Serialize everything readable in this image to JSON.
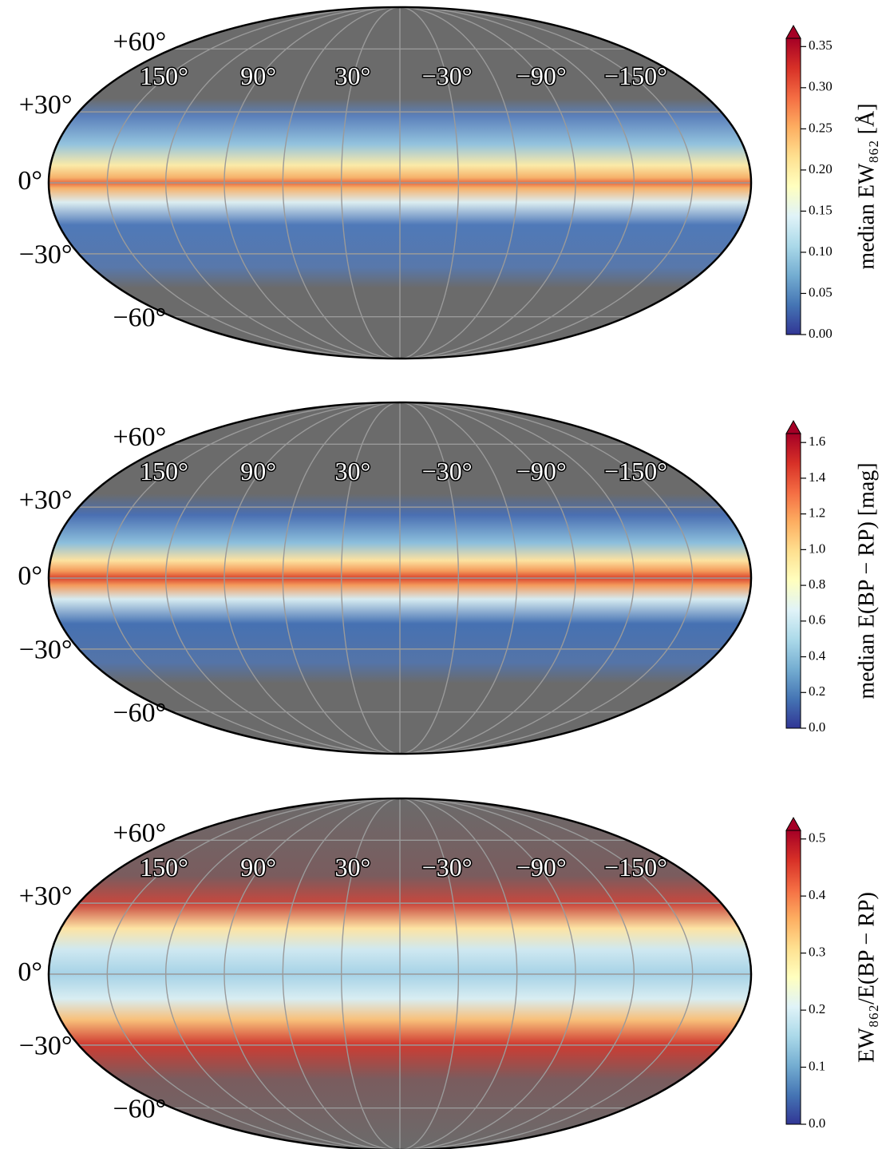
{
  "chart_data": [
    {
      "type": "mollweide",
      "colorbar_label": "median EW₈₆₂ [Å]",
      "clim": [
        0,
        0.36
      ],
      "extend": "max",
      "graticule_step": 30,
      "xlim": [
        180,
        -180
      ],
      "ylim": [
        -90,
        90
      ],
      "xticks": [
        {
          "value": 150,
          "label": "150°"
        },
        {
          "value": 90,
          "label": "90°"
        },
        {
          "value": 30,
          "label": "30°"
        },
        {
          "value": -30,
          "label": "−30°"
        },
        {
          "value": -90,
          "label": "−90°"
        },
        {
          "value": -150,
          "label": "−150°"
        }
      ],
      "yticks": [
        {
          "value": 60,
          "label": "+60°"
        },
        {
          "value": 30,
          "label": "+30°"
        },
        {
          "value": 0,
          "label": "0°"
        },
        {
          "value": -30,
          "label": "−30°"
        },
        {
          "value": -60,
          "label": "−60°"
        }
      ],
      "cticks": [
        {
          "value": 0,
          "label": "0.00"
        },
        0.05,
        {
          "value": 0.1,
          "label": "0.10"
        },
        0.15,
        {
          "value": 0.2,
          "label": "0.20"
        },
        0.25,
        {
          "value": 0.3,
          "label": "0.30"
        },
        0.35
      ],
      "colormap": [
        "#313695",
        "#4575b4",
        "#74add1",
        "#abd9e9",
        "#e0f3f8",
        "#ffffbf",
        "#fee090",
        "#fdae61",
        "#f46d43",
        "#d73027",
        "#a50026"
      ]
    },
    {
      "type": "mollweide",
      "colorbar_label": "median E(BP − RP) [mag]",
      "clim": [
        0,
        1.65
      ],
      "extend": "max",
      "graticule_step": 30,
      "xlim": [
        180,
        -180
      ],
      "ylim": [
        -90,
        90
      ],
      "xticks": [
        {
          "value": 150,
          "label": "150°"
        },
        {
          "value": 90,
          "label": "90°"
        },
        {
          "value": 30,
          "label": "30°"
        },
        {
          "value": -30,
          "label": "−30°"
        },
        {
          "value": -90,
          "label": "−90°"
        },
        {
          "value": -150,
          "label": "−150°"
        }
      ],
      "yticks": [
        {
          "value": 60,
          "label": "+60°"
        },
        {
          "value": 30,
          "label": "+30°"
        },
        {
          "value": 0,
          "label": "0°"
        },
        {
          "value": -30,
          "label": "−30°"
        },
        {
          "value": -60,
          "label": "−60°"
        }
      ],
      "cticks": [
        {
          "value": 0,
          "label": "0.0"
        },
        0.2,
        0.4,
        0.6,
        0.8,
        {
          "value": 1,
          "label": "1.0"
        },
        1.2,
        1.4,
        1.6
      ],
      "colormap": [
        "#313695",
        "#4575b4",
        "#74add1",
        "#abd9e9",
        "#e0f3f8",
        "#ffffbf",
        "#fee090",
        "#fdae61",
        "#f46d43",
        "#d73027",
        "#a50026"
      ]
    },
    {
      "type": "mollweide",
      "colorbar_label": "EW₈₆₂/E(BP − RP)",
      "clim": [
        0,
        0.515
      ],
      "extend": "max",
      "graticule_step": 30,
      "xlim": [
        180,
        -180
      ],
      "ylim": [
        -90,
        90
      ],
      "xticks": [
        {
          "value": 150,
          "label": "150°"
        },
        {
          "value": 90,
          "label": "90°"
        },
        {
          "value": 30,
          "label": "30°"
        },
        {
          "value": -30,
          "label": "−30°"
        },
        {
          "value": -90,
          "label": "−90°"
        },
        {
          "value": -150,
          "label": "−150°"
        }
      ],
      "yticks": [
        {
          "value": 60,
          "label": "+60°"
        },
        {
          "value": 30,
          "label": "+30°"
        },
        {
          "value": 0,
          "label": "0°"
        },
        {
          "value": -30,
          "label": "−30°"
        },
        {
          "value": -60,
          "label": "−60°"
        }
      ],
      "cticks": [
        {
          "value": 0,
          "label": "0.0"
        },
        0.1,
        0.2,
        0.3,
        0.4,
        0.5
      ],
      "colormap": [
        "#313695",
        "#4575b4",
        "#74add1",
        "#abd9e9",
        "#e0f3f8",
        "#ffffbf",
        "#fee090",
        "#fdae61",
        "#f46d43",
        "#d73027",
        "#a50026"
      ]
    }
  ]
}
